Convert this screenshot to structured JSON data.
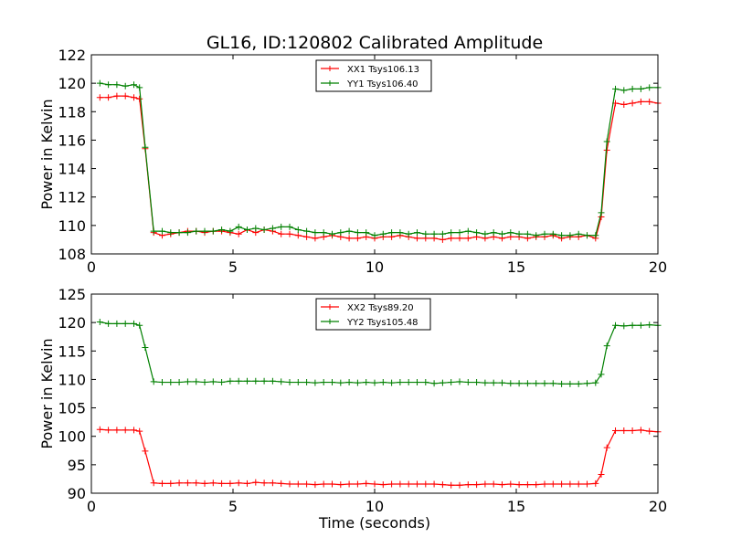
{
  "chart_data": [
    {
      "type": "line",
      "title": "GL16, ID:120802 Calibrated Amplitude",
      "xlabel": "",
      "ylabel": "Power in Kelvin",
      "xlim": [
        0,
        20
      ],
      "ylim": [
        108,
        122
      ],
      "xticks": [
        0,
        5,
        10,
        15,
        20
      ],
      "yticks": [
        108,
        110,
        112,
        114,
        116,
        118,
        120,
        122
      ],
      "grid": false,
      "legend_position": "top-center",
      "x": [
        0.3,
        0.6,
        0.9,
        1.2,
        1.5,
        1.7,
        1.9,
        2.2,
        2.5,
        2.8,
        3.1,
        3.4,
        3.7,
        4.0,
        4.3,
        4.6,
        4.9,
        5.2,
        5.5,
        5.8,
        6.1,
        6.4,
        6.7,
        7.0,
        7.3,
        7.6,
        7.9,
        8.2,
        8.5,
        8.8,
        9.1,
        9.4,
        9.7,
        10.0,
        10.3,
        10.6,
        10.9,
        11.2,
        11.5,
        11.8,
        12.1,
        12.4,
        12.7,
        13.0,
        13.3,
        13.6,
        13.9,
        14.2,
        14.5,
        14.8,
        15.1,
        15.4,
        15.7,
        16.0,
        16.3,
        16.6,
        16.9,
        17.2,
        17.5,
        17.8,
        18.0,
        18.2,
        18.5,
        18.8,
        19.1,
        19.4,
        19.7,
        20.0
      ],
      "series": [
        {
          "name": "XX1 Tsys106.13",
          "color": "#ff0000",
          "values": [
            119.0,
            119.0,
            119.1,
            119.1,
            119.0,
            118.9,
            115.4,
            109.5,
            109.3,
            109.4,
            109.5,
            109.6,
            109.6,
            109.5,
            109.6,
            109.6,
            109.5,
            109.4,
            109.7,
            109.5,
            109.7,
            109.6,
            109.4,
            109.4,
            109.3,
            109.2,
            109.1,
            109.2,
            109.3,
            109.2,
            109.1,
            109.1,
            109.2,
            109.1,
            109.2,
            109.2,
            109.3,
            109.2,
            109.1,
            109.1,
            109.1,
            109.0,
            109.1,
            109.1,
            109.1,
            109.2,
            109.1,
            109.2,
            109.1,
            109.2,
            109.2,
            109.1,
            109.2,
            109.2,
            109.3,
            109.1,
            109.2,
            109.2,
            109.3,
            109.1,
            110.6,
            115.3,
            118.6,
            118.5,
            118.6,
            118.7,
            118.7,
            118.6
          ]
        },
        {
          "name": "YY1 Tsys106.40",
          "color": "#008000",
          "values": [
            120.0,
            119.9,
            119.9,
            119.8,
            119.9,
            119.7,
            115.5,
            109.6,
            109.6,
            109.5,
            109.5,
            109.5,
            109.6,
            109.6,
            109.6,
            109.7,
            109.6,
            109.9,
            109.7,
            109.8,
            109.7,
            109.8,
            109.9,
            109.9,
            109.7,
            109.6,
            109.5,
            109.5,
            109.4,
            109.5,
            109.6,
            109.5,
            109.5,
            109.3,
            109.4,
            109.5,
            109.5,
            109.4,
            109.5,
            109.4,
            109.4,
            109.4,
            109.5,
            109.5,
            109.6,
            109.5,
            109.4,
            109.5,
            109.4,
            109.5,
            109.4,
            109.4,
            109.3,
            109.4,
            109.4,
            109.3,
            109.3,
            109.4,
            109.3,
            109.3,
            110.9,
            115.9,
            119.6,
            119.5,
            119.6,
            119.6,
            119.7,
            119.7
          ]
        }
      ]
    },
    {
      "type": "line",
      "title": "",
      "xlabel": "Time (seconds)",
      "ylabel": "Power in Kelvin",
      "xlim": [
        0,
        20
      ],
      "ylim": [
        90,
        125
      ],
      "xticks": [
        0,
        5,
        10,
        15,
        20
      ],
      "yticks": [
        90,
        95,
        100,
        105,
        110,
        115,
        120,
        125
      ],
      "grid": false,
      "legend_position": "top-center",
      "x": [
        0.3,
        0.6,
        0.9,
        1.2,
        1.5,
        1.7,
        1.9,
        2.2,
        2.5,
        2.8,
        3.1,
        3.4,
        3.7,
        4.0,
        4.3,
        4.6,
        4.9,
        5.2,
        5.5,
        5.8,
        6.1,
        6.4,
        6.7,
        7.0,
        7.3,
        7.6,
        7.9,
        8.2,
        8.5,
        8.8,
        9.1,
        9.4,
        9.7,
        10.0,
        10.3,
        10.6,
        10.9,
        11.2,
        11.5,
        11.8,
        12.1,
        12.4,
        12.7,
        13.0,
        13.3,
        13.6,
        13.9,
        14.2,
        14.5,
        14.8,
        15.1,
        15.4,
        15.7,
        16.0,
        16.3,
        16.6,
        16.9,
        17.2,
        17.5,
        17.8,
        18.0,
        18.2,
        18.5,
        18.8,
        19.1,
        19.4,
        19.7,
        20.0
      ],
      "series": [
        {
          "name": "XX2 Tsys89.20",
          "color": "#ff0000",
          "values": [
            101.2,
            101.1,
            101.1,
            101.1,
            101.1,
            100.9,
            97.4,
            91.8,
            91.7,
            91.7,
            91.8,
            91.8,
            91.8,
            91.7,
            91.8,
            91.7,
            91.7,
            91.8,
            91.7,
            91.9,
            91.8,
            91.8,
            91.7,
            91.6,
            91.6,
            91.6,
            91.5,
            91.6,
            91.6,
            91.5,
            91.6,
            91.6,
            91.7,
            91.6,
            91.5,
            91.6,
            91.6,
            91.6,
            91.6,
            91.6,
            91.6,
            91.5,
            91.4,
            91.4,
            91.5,
            91.5,
            91.6,
            91.6,
            91.5,
            91.6,
            91.5,
            91.5,
            91.5,
            91.6,
            91.6,
            91.6,
            91.6,
            91.6,
            91.6,
            91.7,
            93.3,
            98.0,
            101.0,
            101.0,
            101.0,
            101.1,
            100.9,
            100.8
          ]
        },
        {
          "name": "YY2 Tsys105.48",
          "color": "#008000",
          "values": [
            120.1,
            119.8,
            119.8,
            119.8,
            119.8,
            119.5,
            115.6,
            109.6,
            109.5,
            109.5,
            109.5,
            109.6,
            109.6,
            109.5,
            109.6,
            109.5,
            109.7,
            109.7,
            109.7,
            109.7,
            109.7,
            109.7,
            109.6,
            109.5,
            109.5,
            109.5,
            109.4,
            109.5,
            109.5,
            109.4,
            109.5,
            109.4,
            109.5,
            109.4,
            109.5,
            109.4,
            109.5,
            109.5,
            109.5,
            109.5,
            109.3,
            109.4,
            109.5,
            109.6,
            109.5,
            109.5,
            109.4,
            109.4,
            109.4,
            109.3,
            109.3,
            109.3,
            109.3,
            109.3,
            109.3,
            109.2,
            109.2,
            109.2,
            109.3,
            109.4,
            110.9,
            115.9,
            119.5,
            119.4,
            119.5,
            119.5,
            119.6,
            119.5
          ]
        }
      ]
    }
  ]
}
